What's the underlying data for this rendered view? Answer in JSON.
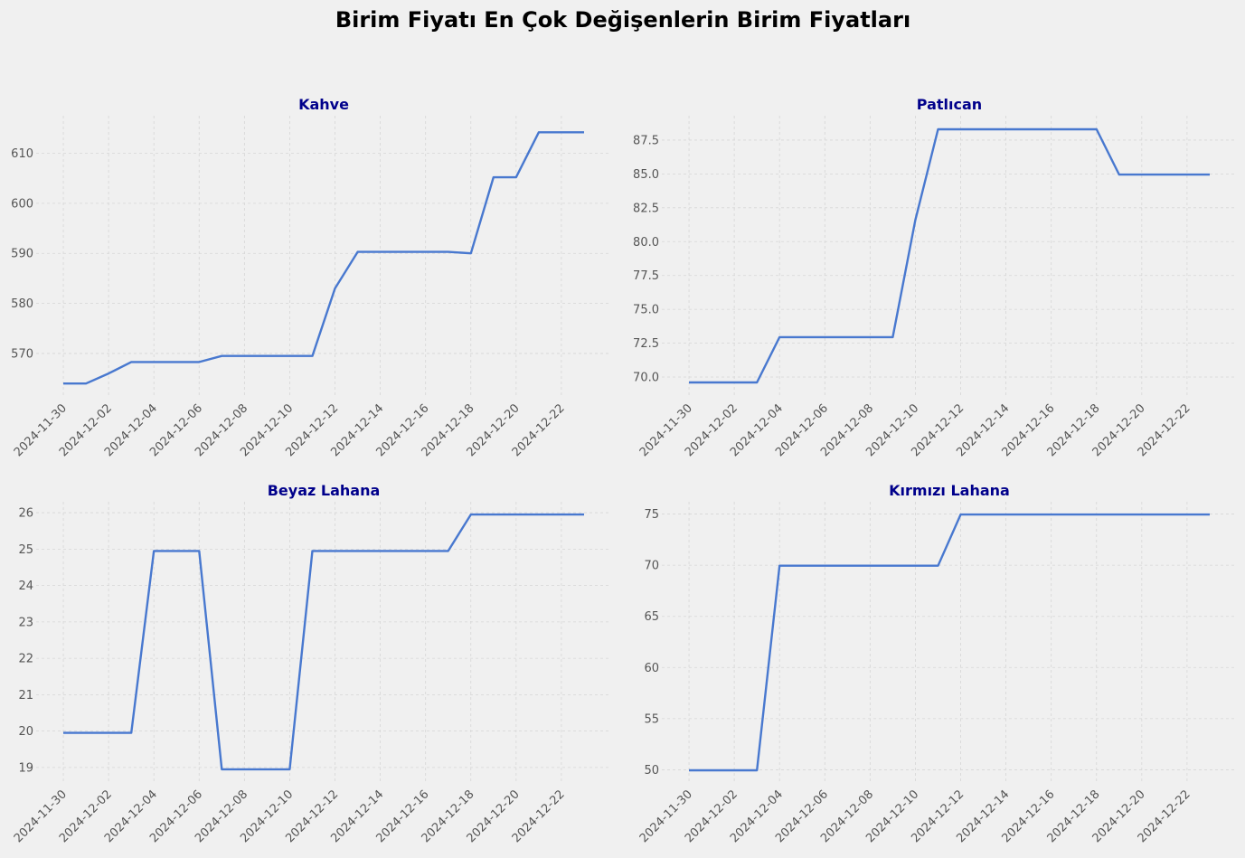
{
  "figure": {
    "title": "Birim Fiyatı En Çok Değişenlerin Birim Fiyatları",
    "title_color": "#000000",
    "background": "#f0f0f0"
  },
  "colors": {
    "line": "#4878cf",
    "panel_title": "#00008b",
    "tick_text": "#555555",
    "grid": "#d6d6d6"
  },
  "chart_data": [
    {
      "type": "line",
      "title": "Kahve",
      "xlabel": "",
      "ylabel": "",
      "x_tick_labels": [
        "2024-11-30",
        "2024-12-02",
        "2024-12-04",
        "2024-12-06",
        "2024-12-08",
        "2024-12-10",
        "2024-12-12",
        "2024-12-14",
        "2024-12-16",
        "2024-12-18",
        "2024-12-20",
        "2024-12-22"
      ],
      "y_ticks": [
        "570",
        "580",
        "590",
        "600",
        "610"
      ],
      "ylim": [
        561.5,
        617.5
      ],
      "grid": true,
      "x": [
        "2024-11-30",
        "2024-12-01",
        "2024-12-02",
        "2024-12-03",
        "2024-12-04",
        "2024-12-05",
        "2024-12-06",
        "2024-12-07",
        "2024-12-08",
        "2024-12-09",
        "2024-12-10",
        "2024-12-11",
        "2024-12-12",
        "2024-12-13",
        "2024-12-14",
        "2024-12-15",
        "2024-12-16",
        "2024-12-17",
        "2024-12-18",
        "2024-12-19",
        "2024-12-20",
        "2024-12-21",
        "2024-12-22",
        "2024-12-23"
      ],
      "values": [
        564,
        564,
        566,
        568.3,
        568.3,
        568.3,
        568.3,
        569.5,
        569.5,
        569.5,
        569.5,
        569.5,
        583,
        590.3,
        590.3,
        590.3,
        590.3,
        590.3,
        590,
        605.2,
        605.2,
        614.2,
        614.2,
        614.2
      ]
    },
    {
      "type": "line",
      "title": "Patlıcan",
      "xlabel": "",
      "ylabel": "",
      "x_tick_labels": [
        "2024-11-30",
        "2024-12-02",
        "2024-12-04",
        "2024-12-06",
        "2024-12-08",
        "2024-12-10",
        "2024-12-12",
        "2024-12-14",
        "2024-12-16",
        "2024-12-18",
        "2024-12-20",
        "2024-12-22"
      ],
      "y_ticks": [
        "70.0",
        "72.5",
        "75.0",
        "77.5",
        "80.0",
        "82.5",
        "85.0",
        "87.5"
      ],
      "ylim": [
        68.6,
        89.3
      ],
      "grid": true,
      "x": [
        "2024-11-30",
        "2024-12-01",
        "2024-12-02",
        "2024-12-03",
        "2024-12-04",
        "2024-12-05",
        "2024-12-06",
        "2024-12-07",
        "2024-12-08",
        "2024-12-09",
        "2024-12-10",
        "2024-12-11",
        "2024-12-12",
        "2024-12-13",
        "2024-12-14",
        "2024-12-15",
        "2024-12-16",
        "2024-12-17",
        "2024-12-18",
        "2024-12-19",
        "2024-12-20",
        "2024-12-21",
        "2024-12-22",
        "2024-12-23"
      ],
      "values": [
        69.6,
        69.6,
        69.6,
        69.6,
        72.95,
        72.95,
        72.95,
        72.95,
        72.95,
        72.95,
        81.6,
        88.3,
        88.3,
        88.3,
        88.3,
        88.3,
        88.3,
        88.3,
        88.3,
        84.95,
        84.95,
        84.95,
        84.95,
        84.95
      ]
    },
    {
      "type": "line",
      "title": "Beyaz Lahana",
      "xlabel": "",
      "ylabel": "",
      "x_tick_labels": [
        "2024-11-30",
        "2024-12-02",
        "2024-12-04",
        "2024-12-06",
        "2024-12-08",
        "2024-12-10",
        "2024-12-12",
        "2024-12-14",
        "2024-12-16",
        "2024-12-18",
        "2024-12-20",
        "2024-12-22"
      ],
      "y_ticks": [
        "19",
        "20",
        "21",
        "22",
        "23",
        "24",
        "25",
        "26"
      ],
      "ylim": [
        18.6,
        26.3
      ],
      "grid": true,
      "x": [
        "2024-11-30",
        "2024-12-01",
        "2024-12-02",
        "2024-12-03",
        "2024-12-04",
        "2024-12-05",
        "2024-12-06",
        "2024-12-07",
        "2024-12-08",
        "2024-12-09",
        "2024-12-10",
        "2024-12-11",
        "2024-12-12",
        "2024-12-13",
        "2024-12-14",
        "2024-12-15",
        "2024-12-16",
        "2024-12-17",
        "2024-12-18",
        "2024-12-19",
        "2024-12-20",
        "2024-12-21",
        "2024-12-22",
        "2024-12-23"
      ],
      "values": [
        19.95,
        19.95,
        19.95,
        19.95,
        24.95,
        24.95,
        24.95,
        18.95,
        18.95,
        18.95,
        18.95,
        24.95,
        24.95,
        24.95,
        24.95,
        24.95,
        24.95,
        24.95,
        25.95,
        25.95,
        25.95,
        25.95,
        25.95,
        25.95
      ]
    },
    {
      "type": "line",
      "title": "Kırmızı Lahana",
      "xlabel": "",
      "ylabel": "",
      "x_tick_labels": [
        "2024-11-30",
        "2024-12-02",
        "2024-12-04",
        "2024-12-06",
        "2024-12-08",
        "2024-12-10",
        "2024-12-12",
        "2024-12-14",
        "2024-12-16",
        "2024-12-18",
        "2024-12-20",
        "2024-12-22"
      ],
      "y_ticks": [
        "50",
        "55",
        "60",
        "65",
        "70",
        "75"
      ],
      "ylim": [
        48.8,
        76.2
      ],
      "grid": true,
      "x": [
        "2024-11-30",
        "2024-12-01",
        "2024-12-02",
        "2024-12-03",
        "2024-12-04",
        "2024-12-05",
        "2024-12-06",
        "2024-12-07",
        "2024-12-08",
        "2024-12-09",
        "2024-12-10",
        "2024-12-11",
        "2024-12-12",
        "2024-12-13",
        "2024-12-14",
        "2024-12-15",
        "2024-12-16",
        "2024-12-17",
        "2024-12-18",
        "2024-12-19",
        "2024-12-20",
        "2024-12-21",
        "2024-12-22",
        "2024-12-23"
      ],
      "values": [
        49.95,
        49.95,
        49.95,
        49.95,
        69.95,
        69.95,
        69.95,
        69.95,
        69.95,
        69.95,
        69.95,
        69.95,
        74.95,
        74.95,
        74.95,
        74.95,
        74.95,
        74.95,
        74.95,
        74.95,
        74.95,
        74.95,
        74.95,
        74.95
      ]
    }
  ]
}
